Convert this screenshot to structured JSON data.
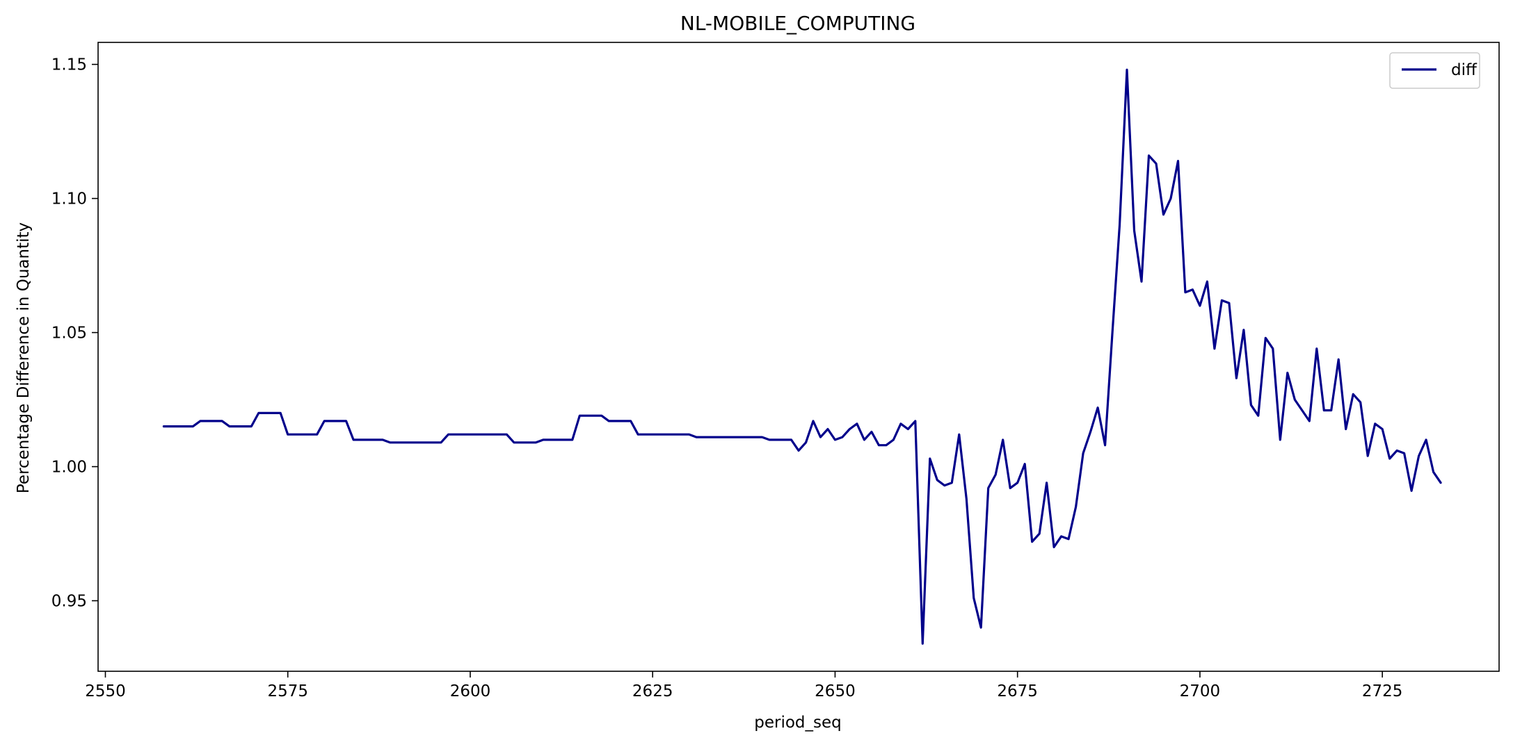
{
  "chart_data": {
    "type": "line",
    "title": "NL-MOBILE_COMPUTING",
    "xlabel": "period_seq",
    "ylabel": "Percentage Difference in Quantity",
    "xlim": [
      2549,
      2741
    ],
    "ylim": [
      0.9237,
      1.1582
    ],
    "xticks": [
      2550,
      2575,
      2600,
      2625,
      2650,
      2675,
      2700,
      2725
    ],
    "yticks": [
      0.95,
      1.0,
      1.05,
      1.1,
      1.15
    ],
    "xtick_labels": [
      "2550",
      "2575",
      "2600",
      "2625",
      "2650",
      "2675",
      "2700",
      "2725"
    ],
    "ytick_labels": [
      "0.95",
      "1.00",
      "1.05",
      "1.10",
      "1.15"
    ],
    "grid": false,
    "legend_position": "top-right",
    "series": [
      {
        "name": "diff",
        "color": "#00008b",
        "x": [
          2558,
          2559,
          2560,
          2561,
          2562,
          2563,
          2564,
          2565,
          2566,
          2567,
          2568,
          2569,
          2570,
          2571,
          2572,
          2573,
          2574,
          2575,
          2576,
          2577,
          2578,
          2579,
          2580,
          2581,
          2582,
          2583,
          2584,
          2585,
          2586,
          2587,
          2588,
          2589,
          2590,
          2591,
          2592,
          2593,
          2594,
          2595,
          2596,
          2597,
          2598,
          2599,
          2600,
          2601,
          2602,
          2603,
          2604,
          2605,
          2606,
          2607,
          2608,
          2609,
          2610,
          2611,
          2612,
          2613,
          2614,
          2615,
          2616,
          2617,
          2618,
          2619,
          2620,
          2621,
          2622,
          2623,
          2624,
          2625,
          2626,
          2627,
          2628,
          2629,
          2630,
          2631,
          2632,
          2633,
          2634,
          2635,
          2636,
          2637,
          2638,
          2639,
          2640,
          2641,
          2642,
          2643,
          2644,
          2645,
          2646,
          2647,
          2648,
          2649,
          2650,
          2651,
          2652,
          2653,
          2654,
          2655,
          2656,
          2657,
          2658,
          2659,
          2660,
          2661,
          2662,
          2663,
          2664,
          2665,
          2666,
          2667,
          2668,
          2669,
          2670,
          2671,
          2672,
          2673,
          2674,
          2675,
          2676,
          2677,
          2678,
          2679,
          2680,
          2681,
          2682,
          2683,
          2684,
          2685,
          2686,
          2687,
          2688,
          2689,
          2690,
          2691,
          2692,
          2693,
          2694,
          2695,
          2696,
          2697,
          2698,
          2699,
          2700,
          2701,
          2702,
          2703,
          2704,
          2705,
          2706,
          2707,
          2708,
          2709,
          2710,
          2711,
          2712,
          2713,
          2714,
          2715,
          2716,
          2717,
          2718,
          2719,
          2720,
          2721,
          2722,
          2723,
          2724,
          2725,
          2726,
          2727,
          2728,
          2729,
          2730,
          2731,
          2732,
          2733
        ],
        "y": [
          1.015,
          1.015,
          1.015,
          1.015,
          1.015,
          1.017,
          1.017,
          1.017,
          1.017,
          1.015,
          1.015,
          1.015,
          1.015,
          1.02,
          1.02,
          1.02,
          1.02,
          1.012,
          1.012,
          1.012,
          1.012,
          1.012,
          1.017,
          1.017,
          1.017,
          1.017,
          1.01,
          1.01,
          1.01,
          1.01,
          1.01,
          1.009,
          1.009,
          1.009,
          1.009,
          1.009,
          1.009,
          1.009,
          1.009,
          1.012,
          1.012,
          1.012,
          1.012,
          1.012,
          1.012,
          1.012,
          1.012,
          1.012,
          1.009,
          1.009,
          1.009,
          1.009,
          1.01,
          1.01,
          1.01,
          1.01,
          1.01,
          1.019,
          1.019,
          1.019,
          1.019,
          1.017,
          1.017,
          1.017,
          1.017,
          1.012,
          1.012,
          1.012,
          1.012,
          1.012,
          1.012,
          1.012,
          1.012,
          1.011,
          1.011,
          1.011,
          1.011,
          1.011,
          1.011,
          1.011,
          1.011,
          1.011,
          1.011,
          1.01,
          1.01,
          1.01,
          1.01,
          1.006,
          1.009,
          1.017,
          1.011,
          1.014,
          1.01,
          1.011,
          1.014,
          1.016,
          1.01,
          1.013,
          1.008,
          1.008,
          1.01,
          1.016,
          1.014,
          1.017,
          0.934,
          1.003,
          0.995,
          0.993,
          0.994,
          1.012,
          0.988,
          0.951,
          0.94,
          0.992,
          0.997,
          1.01,
          0.992,
          0.994,
          1.001,
          0.972,
          0.975,
          0.994,
          0.97,
          0.974,
          0.973,
          0.985,
          1.005,
          1.013,
          1.022,
          1.008,
          1.05,
          1.09,
          1.148,
          1.088,
          1.069,
          1.116,
          1.113,
          1.094,
          1.1,
          1.114,
          1.065,
          1.066,
          1.06,
          1.069,
          1.044,
          1.062,
          1.061,
          1.033,
          1.051,
          1.023,
          1.019,
          1.048,
          1.044,
          1.01,
          1.035,
          1.025,
          1.021,
          1.017,
          1.044,
          1.021,
          1.021,
          1.04,
          1.014,
          1.027,
          1.024,
          1.004,
          1.016,
          1.014,
          1.003,
          1.006,
          1.005,
          0.991,
          1.004,
          1.01,
          0.998,
          0.994
        ]
      }
    ]
  }
}
